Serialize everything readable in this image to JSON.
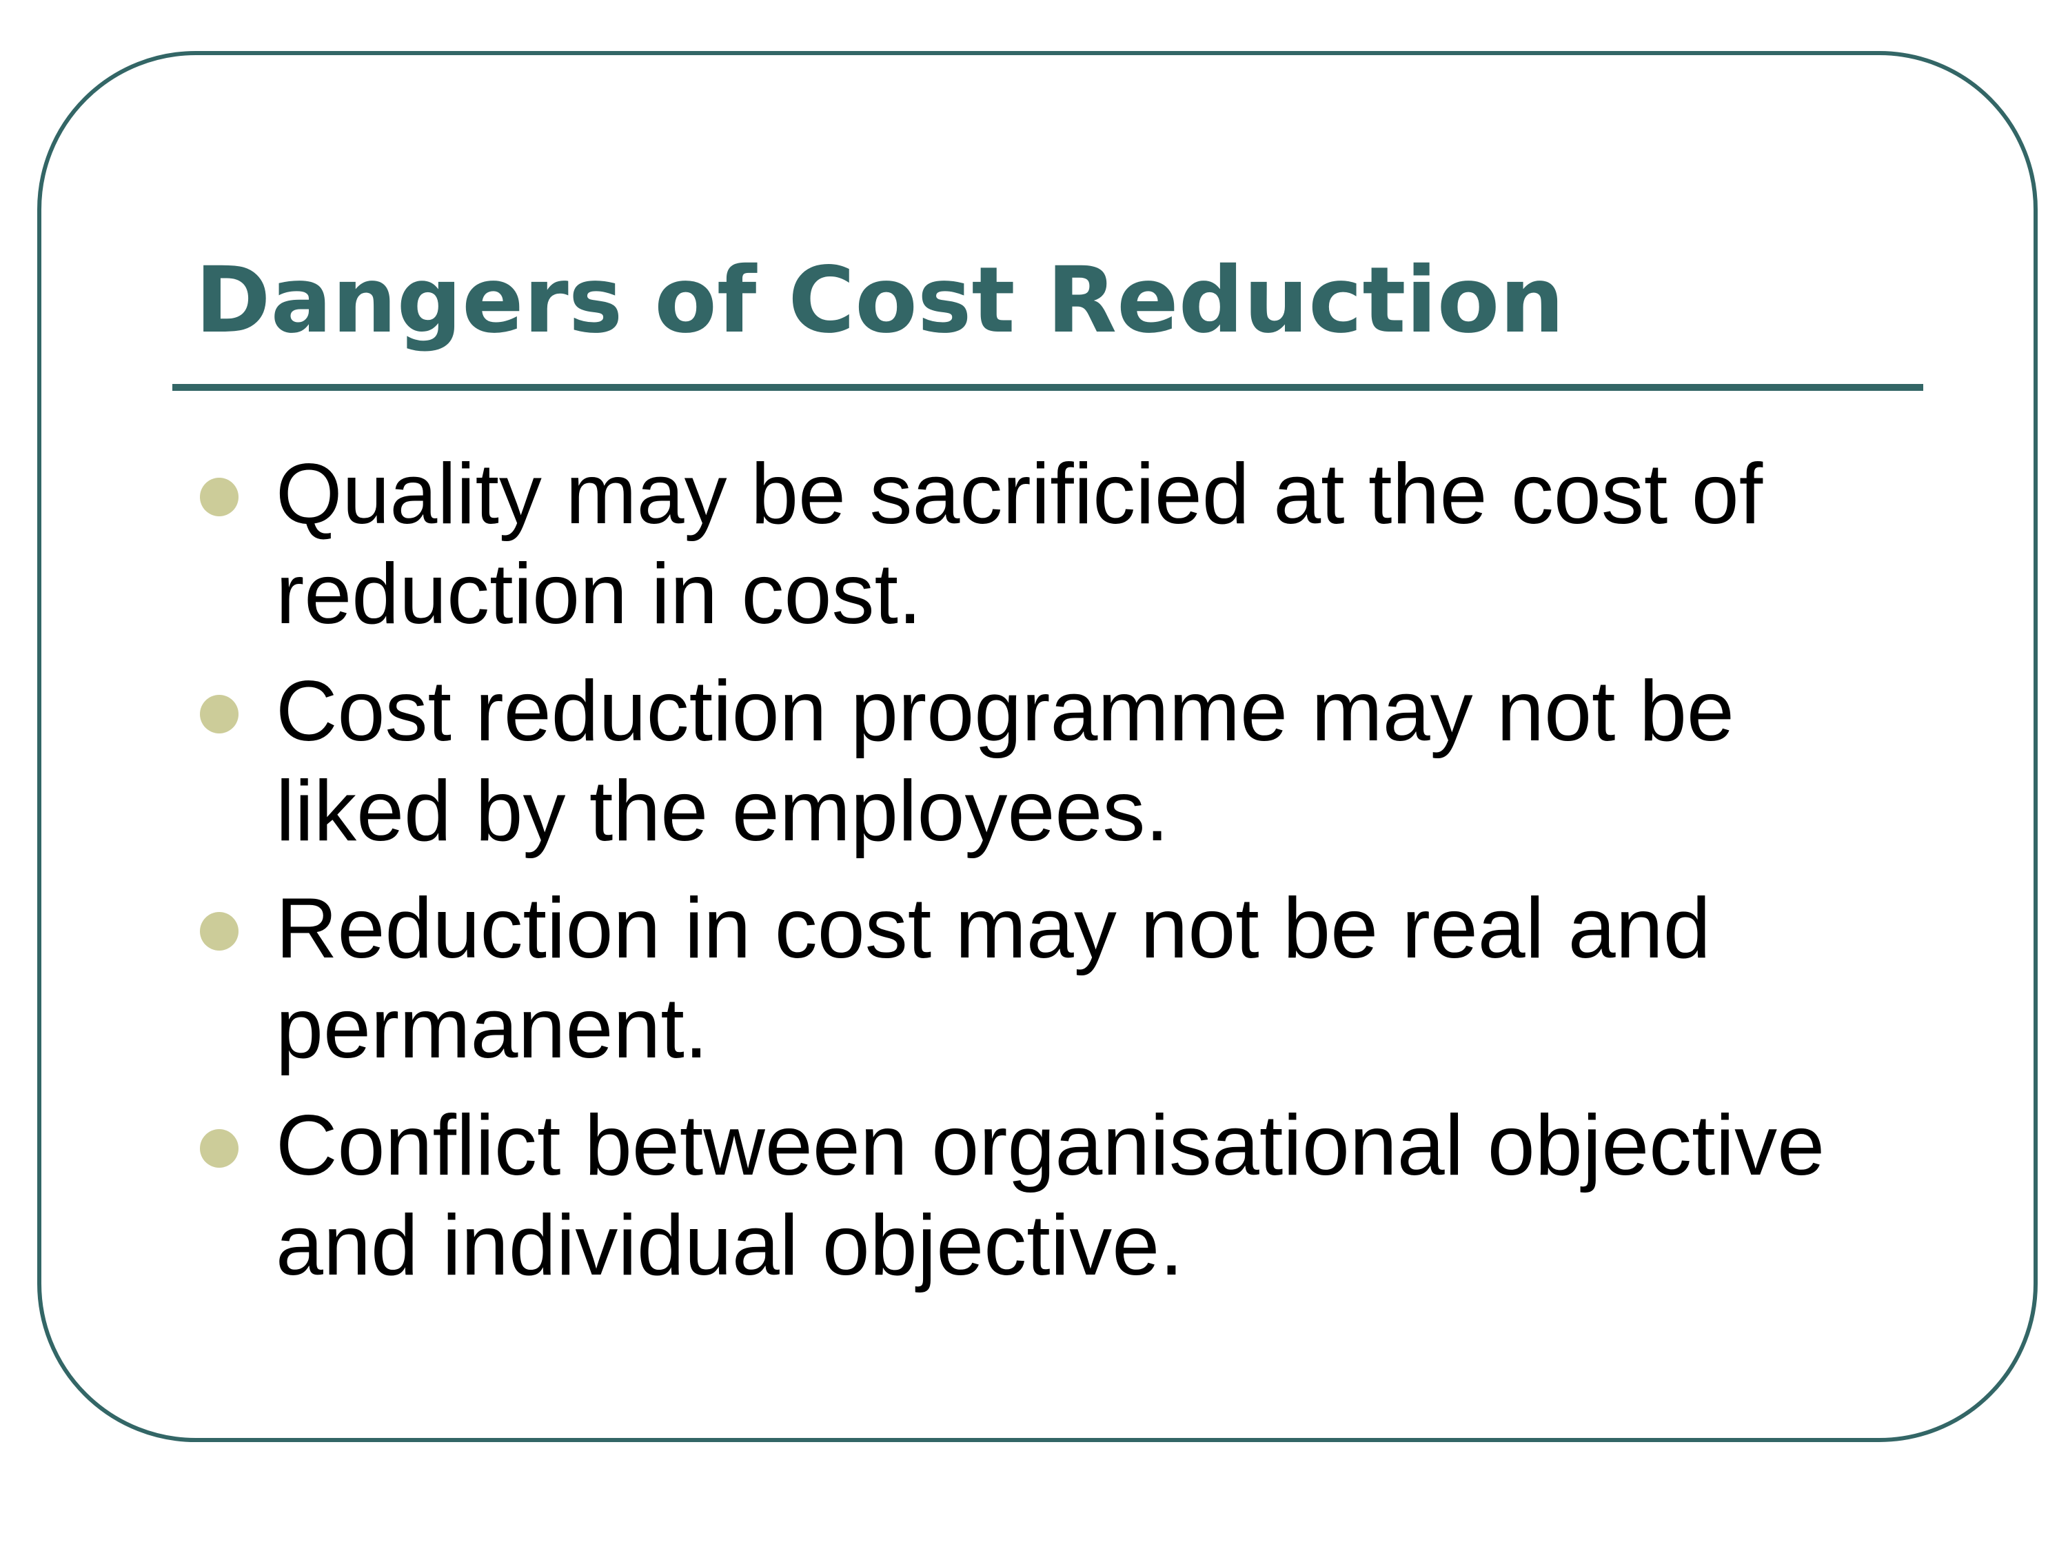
{
  "slide": {
    "title": "Dangers of Cost Reduction",
    "bullets": [
      {
        "line1": "Quality may be sacrificied at the cost of",
        "line2": "reduction in cost."
      },
      {
        "line1": "Cost reduction programme may not be",
        "line2": "liked by the employees."
      },
      {
        "line1": "Reduction in cost may not be real and",
        "line2": "permanent."
      },
      {
        "line1": "Conflict between organisational objective",
        "line2": "and individual objective."
      }
    ]
  },
  "colors": {
    "accent": "#336666",
    "bullet": "#cccc99",
    "text": "#000000",
    "background": "#ffffff"
  }
}
